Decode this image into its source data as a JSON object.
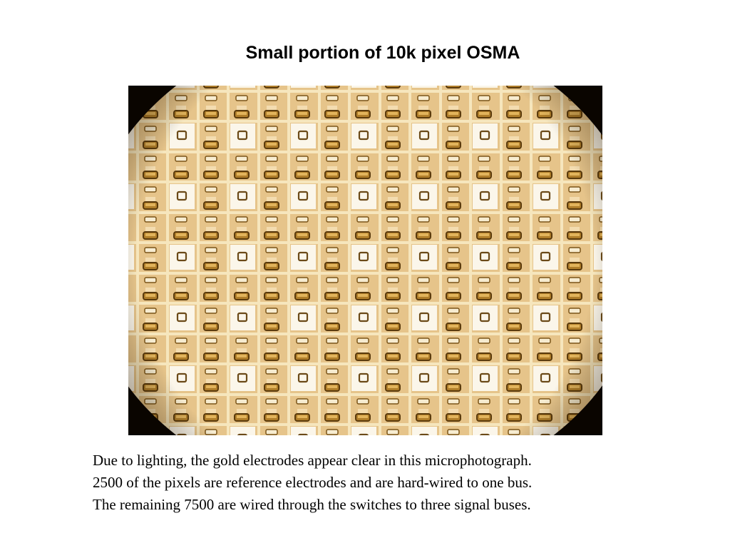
{
  "title": "Small portion of 10k pixel OSMA",
  "caption": [
    "Due to lighting, the gold electrodes appear clear in this microphotograph.",
    "2500 of the pixels are reference electrodes and are hard-wired to one bus.",
    "The remaining 7500 are wired through the switches to three signal buses."
  ]
}
